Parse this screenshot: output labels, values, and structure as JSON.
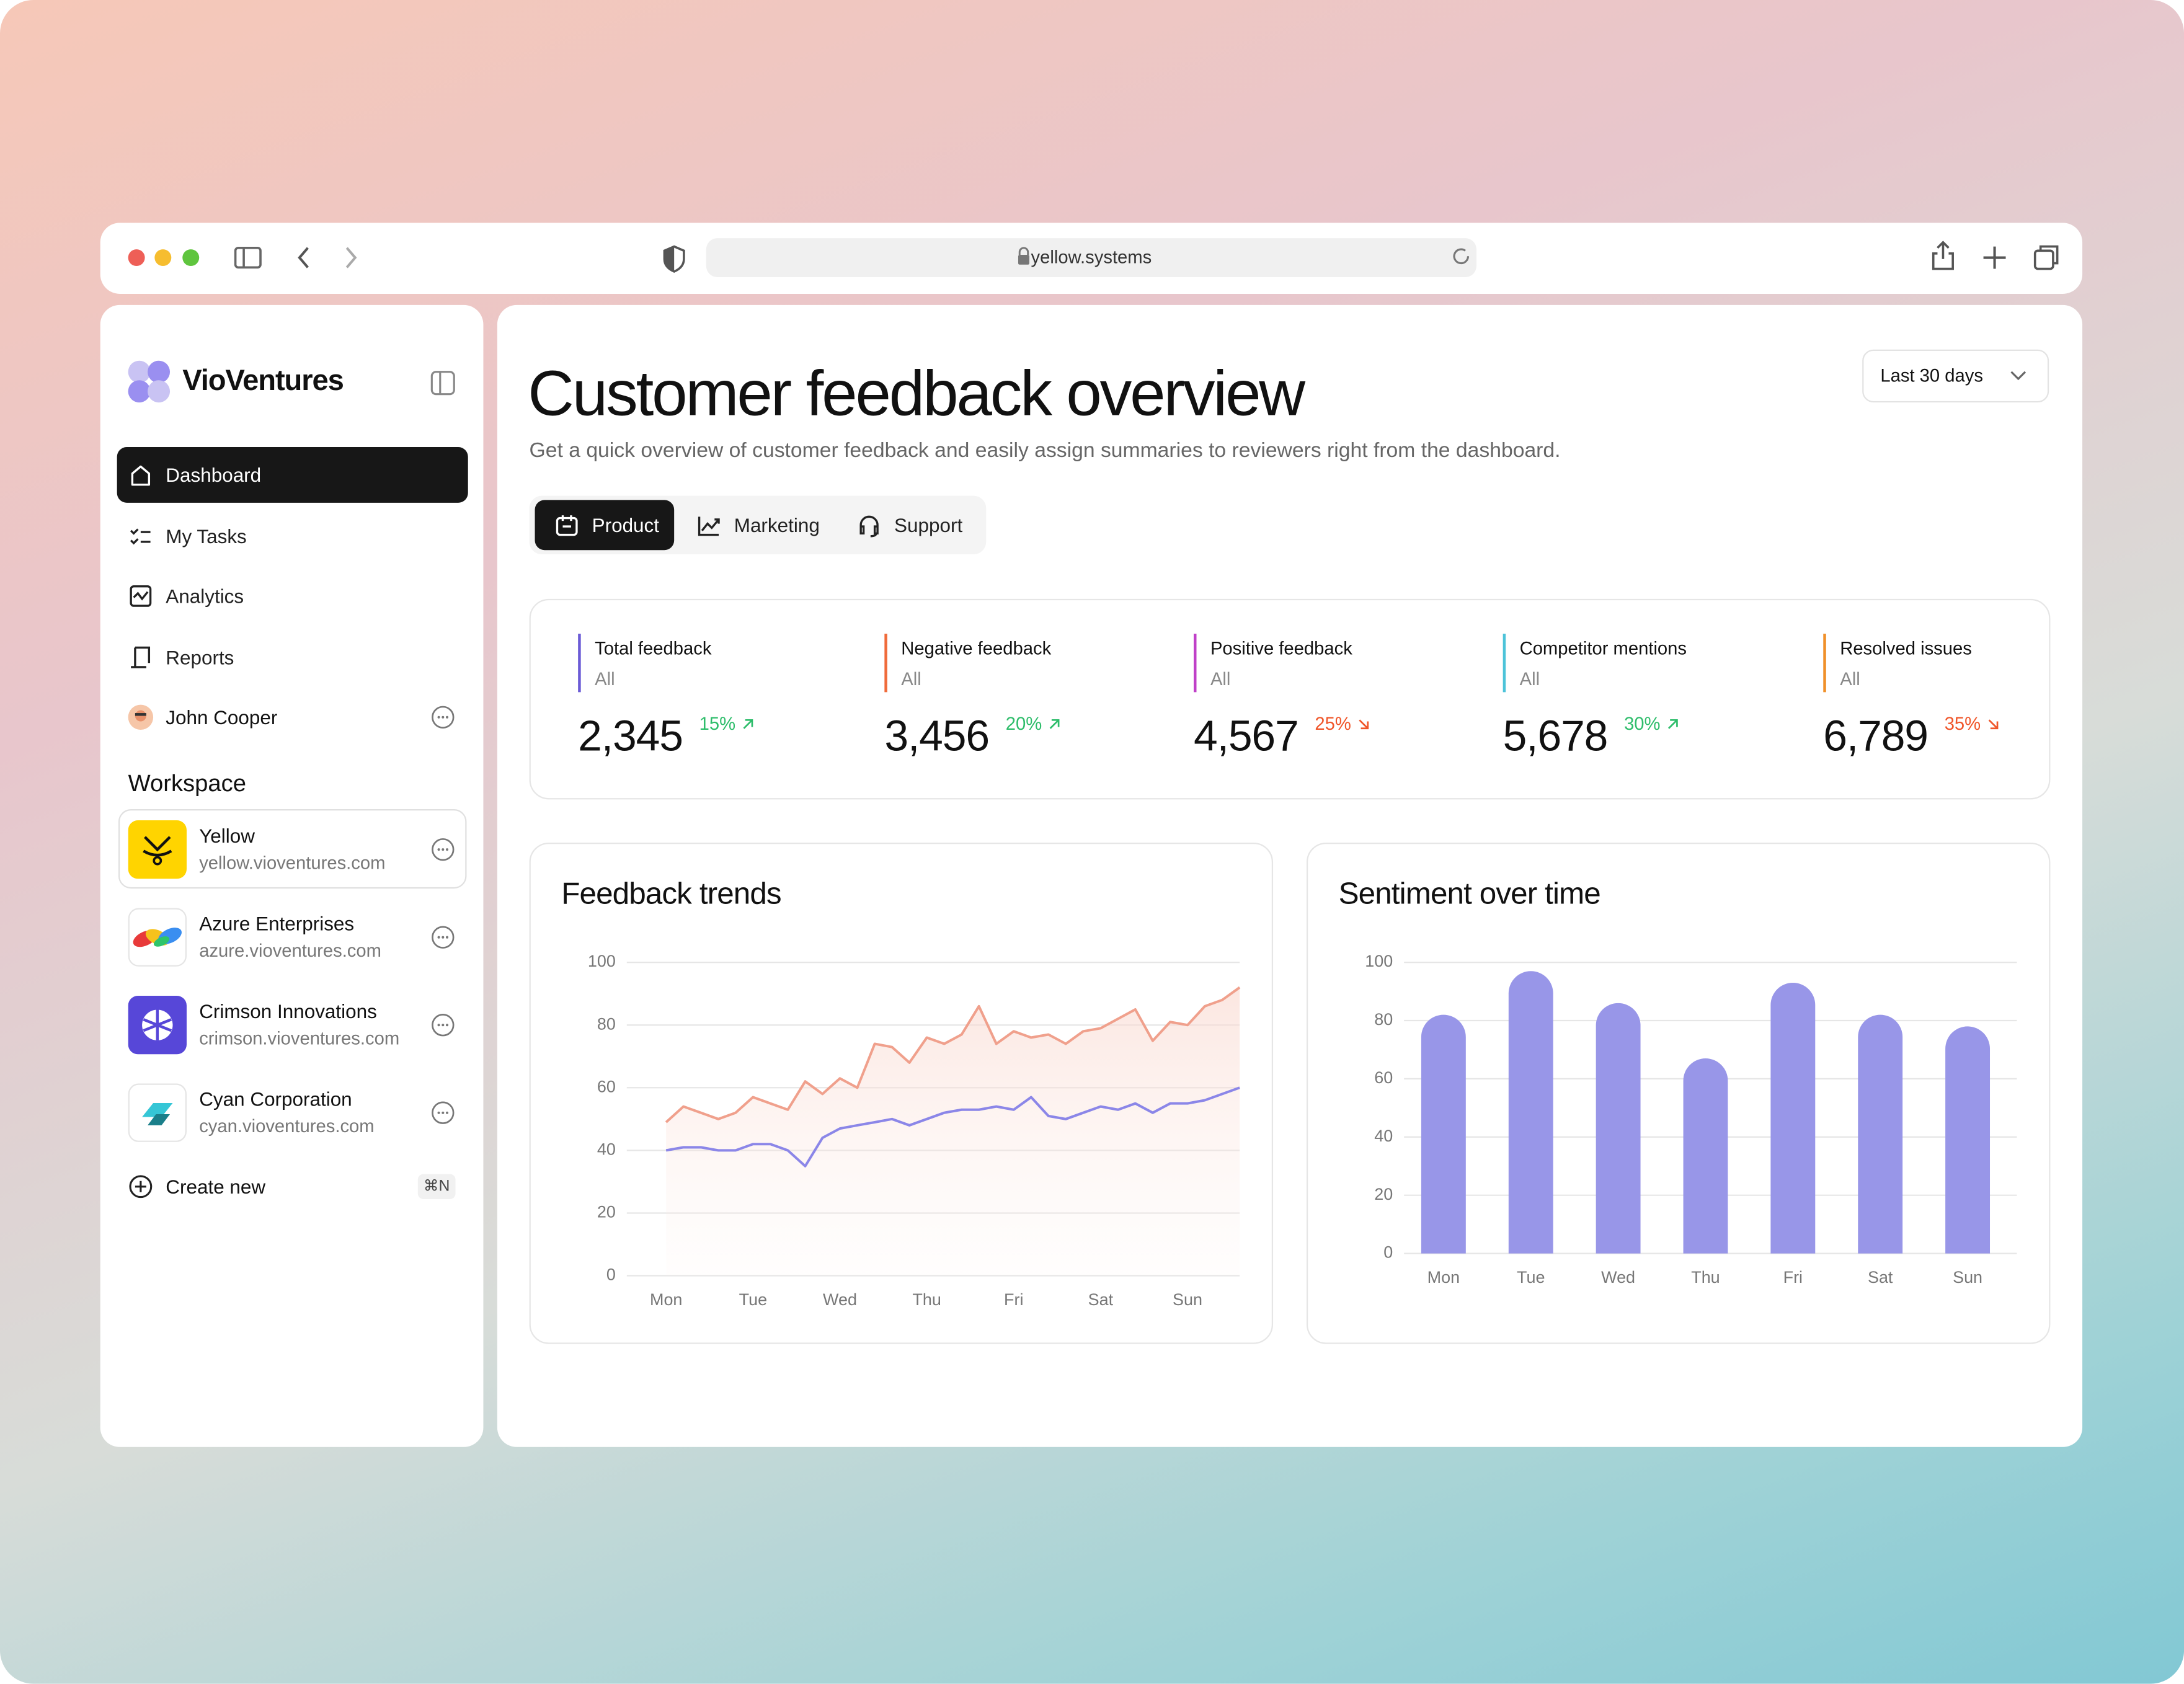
{
  "browser": {
    "url": "yellow.systems"
  },
  "sidebar": {
    "brand": "VioVentures",
    "nav": [
      "Dashboard",
      "My Tasks",
      "Analytics",
      "Reports"
    ],
    "user": "John Cooper",
    "workspace_title": "Workspace",
    "workspaces": [
      {
        "name": "Yellow",
        "domain": "yellow.vioventures.com"
      },
      {
        "name": "Azure Enterprises",
        "domain": "azure.vioventures.com"
      },
      {
        "name": "Crimson Innovations",
        "domain": "crimson.vioventures.com"
      },
      {
        "name": "Cyan Corporation",
        "domain": "cyan.vioventures.com"
      }
    ],
    "create_new": "Create new",
    "shortcut": "⌘N"
  },
  "main": {
    "title": "Customer feedback overview",
    "subtitle": "Get a quick overview of customer feedback and easily assign summaries to reviewers right from the dashboard.",
    "range": "Last 30 days",
    "tabs": [
      "Product",
      "Marketing",
      "Support"
    ],
    "kpis": [
      {
        "label": "Total feedback",
        "filter": "All",
        "value": "2,345",
        "change": "15%",
        "trend": "up",
        "color": "#6b5bd6"
      },
      {
        "label": "Negative feedback",
        "filter": "All",
        "value": "3,456",
        "change": "20%",
        "trend": "up",
        "color": "#f06a3a"
      },
      {
        "label": "Positive feedback",
        "filter": "All",
        "value": "4,567",
        "change": "25%",
        "trend": "down",
        "color": "#c040c8"
      },
      {
        "label": "Competitor mentions",
        "filter": "All",
        "value": "5,678",
        "change": "30%",
        "trend": "up",
        "color": "#4cc3d9"
      },
      {
        "label": "Resolved issues",
        "filter": "All",
        "value": "6,789",
        "change": "35%",
        "trend": "down",
        "color": "#f0902a"
      }
    ]
  },
  "chart_data": [
    {
      "type": "line",
      "title": "Feedback trends",
      "x": [
        0,
        0.2,
        0.4,
        0.6,
        0.8,
        1,
        1.2,
        1.4,
        1.6,
        1.8,
        2,
        2.2,
        2.4,
        2.6,
        2.8,
        3,
        3.2,
        3.4,
        3.6,
        3.8,
        4,
        4.2,
        4.4,
        4.6,
        4.8,
        5,
        5.2,
        5.4,
        5.6,
        5.8,
        6,
        6.2,
        6.4,
        6.6
      ],
      "xlim": [
        -0.1,
        6.6
      ],
      "xticks": [
        {
          "value": 0,
          "label": "Mon"
        },
        {
          "value": 1,
          "label": "Tue"
        },
        {
          "value": 2,
          "label": "Wed"
        },
        {
          "value": 3,
          "label": "Thu"
        },
        {
          "value": 4,
          "label": "Fri"
        },
        {
          "value": 5,
          "label": "Sat"
        },
        {
          "value": 6,
          "label": "Sun"
        }
      ],
      "ylim": [
        0,
        100
      ],
      "yticks": [
        0,
        20,
        40,
        60,
        80,
        100
      ],
      "grid": true,
      "series": [
        {
          "color": "#f0a08c",
          "values": [
            49,
            54,
            52,
            50,
            52,
            57,
            55,
            53,
            62,
            58,
            63,
            60,
            74,
            73,
            68,
            76,
            74,
            77,
            86,
            74,
            78,
            76,
            77,
            74,
            78,
            79,
            82,
            85,
            75,
            81,
            80,
            86,
            88,
            92
          ]
        },
        {
          "color": "#8b86e8",
          "values": [
            40,
            41,
            41,
            40,
            40,
            42,
            42,
            40,
            35,
            44,
            47,
            48,
            49,
            50,
            48,
            50,
            52,
            53,
            53,
            54,
            53,
            57,
            51,
            50,
            52,
            54,
            53,
            55,
            52,
            55,
            55,
            56,
            58,
            60
          ]
        }
      ]
    },
    {
      "type": "bar",
      "title": "Sentiment over time",
      "categories": [
        "Mon",
        "Tue",
        "Wed",
        "Thu",
        "Fri",
        "Sat",
        "Sun"
      ],
      "values": [
        82,
        97,
        86,
        67,
        93,
        82,
        78
      ],
      "color": "#9896e8",
      "ylim": [
        0,
        100
      ],
      "yticks": [
        0,
        20,
        40,
        60,
        80,
        100
      ],
      "grid": true
    }
  ]
}
